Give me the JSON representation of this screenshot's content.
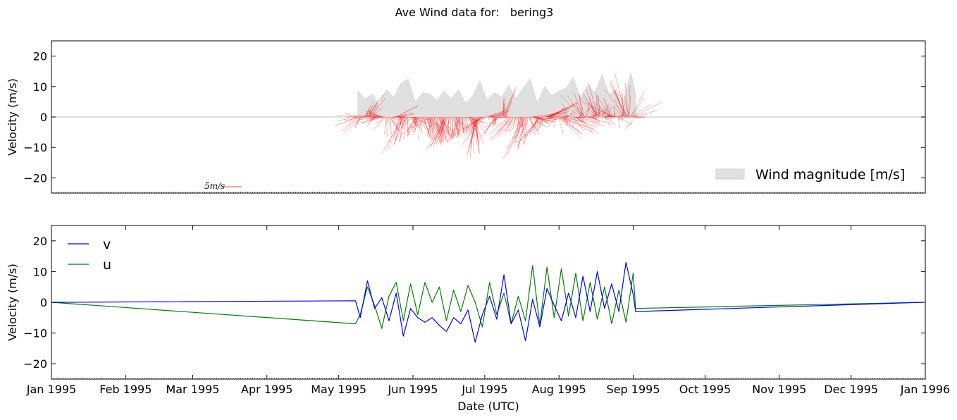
{
  "chart_data": [
    {
      "type": "area",
      "panel": "top",
      "title": "Ave Wind data for:   bering3",
      "ylabel": "Velocity (m/s)",
      "ylim": [
        -25,
        25
      ],
      "yticks": [
        20,
        10,
        0,
        -10,
        -20
      ],
      "ytick_labels": [
        "20",
        "10",
        "0",
        "−10",
        "−20"
      ],
      "xlim": [
        "1995-01-01",
        "1996-01-01"
      ],
      "legend": {
        "location": "lower-right",
        "entries": [
          "Wind magnitude [m/s]"
        ]
      },
      "scale_key": "5m/s",
      "colors": {
        "magnitude_fill": "#e0e0e0",
        "stick": "#ff0000",
        "zero_line": "#cfcfcf"
      },
      "series": [
        {
          "name": "Wind magnitude [m/s]",
          "x": [
            "1995-05-09",
            "1995-05-12",
            "1995-05-15",
            "1995-05-18",
            "1995-05-21",
            "1995-05-24",
            "1995-05-27",
            "1995-05-30",
            "1995-06-02",
            "1995-06-05",
            "1995-06-08",
            "1995-06-11",
            "1995-06-14",
            "1995-06-17",
            "1995-06-20",
            "1995-06-23",
            "1995-06-26",
            "1995-06-29",
            "1995-07-02",
            "1995-07-05",
            "1995-07-08",
            "1995-07-11",
            "1995-07-14",
            "1995-07-17",
            "1995-07-20",
            "1995-07-23",
            "1995-07-26",
            "1995-07-29",
            "1995-08-01",
            "1995-08-04",
            "1995-08-07",
            "1995-08-10",
            "1995-08-13",
            "1995-08-16",
            "1995-08-19",
            "1995-08-22",
            "1995-08-25",
            "1995-08-28",
            "1995-08-31",
            "1995-09-02"
          ],
          "values": [
            8.5,
            6.0,
            7.5,
            4.0,
            9.0,
            6.5,
            11.0,
            12.5,
            5.0,
            8.0,
            7.5,
            5.5,
            8.5,
            6.0,
            9.0,
            4.5,
            7.0,
            12.0,
            5.5,
            8.0,
            6.5,
            10.5,
            6.0,
            9.5,
            12.5,
            4.5,
            10.0,
            7.0,
            8.5,
            9.5,
            13.0,
            6.0,
            10.5,
            8.0,
            14.0,
            7.5,
            9.0,
            5.5,
            14.5,
            8.0
          ]
        }
      ]
    },
    {
      "type": "line",
      "panel": "bottom",
      "xlabel": "Date (UTC)",
      "ylabel": "Velocity (m/s)",
      "ylim": [
        -25,
        25
      ],
      "yticks": [
        20,
        10,
        0,
        -10,
        -20
      ],
      "ytick_labels": [
        "20",
        "10",
        "0",
        "−10",
        "−20"
      ],
      "xlim": [
        "1995-01-01",
        "1996-01-01"
      ],
      "xtick_labels": [
        "Jan 1995",
        "Feb 1995",
        "Mar 1995",
        "Apr 1995",
        "May 1995",
        "Jun 1995",
        "Jul 1995",
        "Aug 1995",
        "Sep 1995",
        "Oct 1995",
        "Nov 1995",
        "Dec 1995",
        "Jan 1996"
      ],
      "xtick_dates": [
        "1995-01-01",
        "1995-02-01",
        "1995-03-01",
        "1995-04-01",
        "1995-05-01",
        "1995-06-01",
        "1995-07-01",
        "1995-08-01",
        "1995-09-01",
        "1995-10-01",
        "1995-11-01",
        "1995-12-01",
        "1996-01-01"
      ],
      "legend": {
        "location": "top-left",
        "entries": [
          "v",
          "u"
        ]
      },
      "series": [
        {
          "name": "v",
          "color": "#0000ff",
          "x": [
            "1995-01-01",
            "1995-05-08",
            "1995-05-10",
            "1995-05-13",
            "1995-05-16",
            "1995-05-19",
            "1995-05-22",
            "1995-05-25",
            "1995-05-28",
            "1995-05-31",
            "1995-06-03",
            "1995-06-06",
            "1995-06-09",
            "1995-06-12",
            "1995-06-15",
            "1995-06-18",
            "1995-06-21",
            "1995-06-24",
            "1995-06-27",
            "1995-06-30",
            "1995-07-03",
            "1995-07-06",
            "1995-07-09",
            "1995-07-12",
            "1995-07-15",
            "1995-07-18",
            "1995-07-21",
            "1995-07-24",
            "1995-07-27",
            "1995-07-30",
            "1995-08-02",
            "1995-08-05",
            "1995-08-08",
            "1995-08-11",
            "1995-08-14",
            "1995-08-17",
            "1995-08-20",
            "1995-08-23",
            "1995-08-26",
            "1995-08-29",
            "1995-09-01",
            "1995-09-02",
            "1995-12-31"
          ],
          "values": [
            0,
            0.5,
            -5.0,
            7.0,
            -2.0,
            1.5,
            -6.0,
            3.0,
            -11.0,
            -2.0,
            -5.0,
            -6.5,
            -5.0,
            -7.5,
            -9.5,
            -5.0,
            -7.0,
            -2.5,
            -13.0,
            -4.0,
            2.0,
            -5.5,
            9.0,
            -7.0,
            -2.5,
            -12.5,
            1.0,
            -8.0,
            4.5,
            -1.0,
            -6.0,
            3.0,
            -5.0,
            8.5,
            -3.0,
            10.0,
            -2.0,
            6.0,
            -3.0,
            13.0,
            2.5,
            -3.0,
            0
          ]
        },
        {
          "name": "u",
          "color": "#008000",
          "x": [
            "1995-01-01",
            "1995-05-08",
            "1995-05-10",
            "1995-05-13",
            "1995-05-16",
            "1995-05-19",
            "1995-05-22",
            "1995-05-25",
            "1995-05-28",
            "1995-05-31",
            "1995-06-03",
            "1995-06-06",
            "1995-06-09",
            "1995-06-12",
            "1995-06-15",
            "1995-06-18",
            "1995-06-21",
            "1995-06-24",
            "1995-06-27",
            "1995-06-30",
            "1995-07-03",
            "1995-07-06",
            "1995-07-09",
            "1995-07-12",
            "1995-07-15",
            "1995-07-18",
            "1995-07-21",
            "1995-07-24",
            "1995-07-27",
            "1995-07-30",
            "1995-08-02",
            "1995-08-05",
            "1995-08-08",
            "1995-08-11",
            "1995-08-14",
            "1995-08-17",
            "1995-08-20",
            "1995-08-23",
            "1995-08-26",
            "1995-08-29",
            "1995-09-01",
            "1995-09-02",
            "1995-12-31"
          ],
          "values": [
            0,
            -7.0,
            -4.0,
            5.0,
            -1.0,
            -8.5,
            2.0,
            6.5,
            -6.0,
            6.0,
            -4.0,
            6.5,
            0.0,
            5.0,
            -6.0,
            4.0,
            -3.0,
            5.5,
            0.0,
            -8.0,
            6.5,
            -4.0,
            3.0,
            -7.0,
            2.0,
            -6.0,
            12.0,
            -7.5,
            11.5,
            -5.0,
            11.0,
            -4.5,
            9.5,
            -6.0,
            6.5,
            -5.5,
            5.0,
            -7.0,
            4.0,
            -6.5,
            9.5,
            -2.0,
            0
          ]
        }
      ]
    }
  ]
}
